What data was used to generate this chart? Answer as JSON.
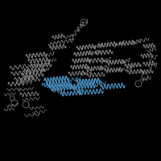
{
  "background_color": "#000000",
  "figsize": [
    2.0,
    2.0
  ],
  "dpi": 100,
  "main_color": "#888888",
  "highlight_color": "#4a8fc0",
  "seed": 1234
}
